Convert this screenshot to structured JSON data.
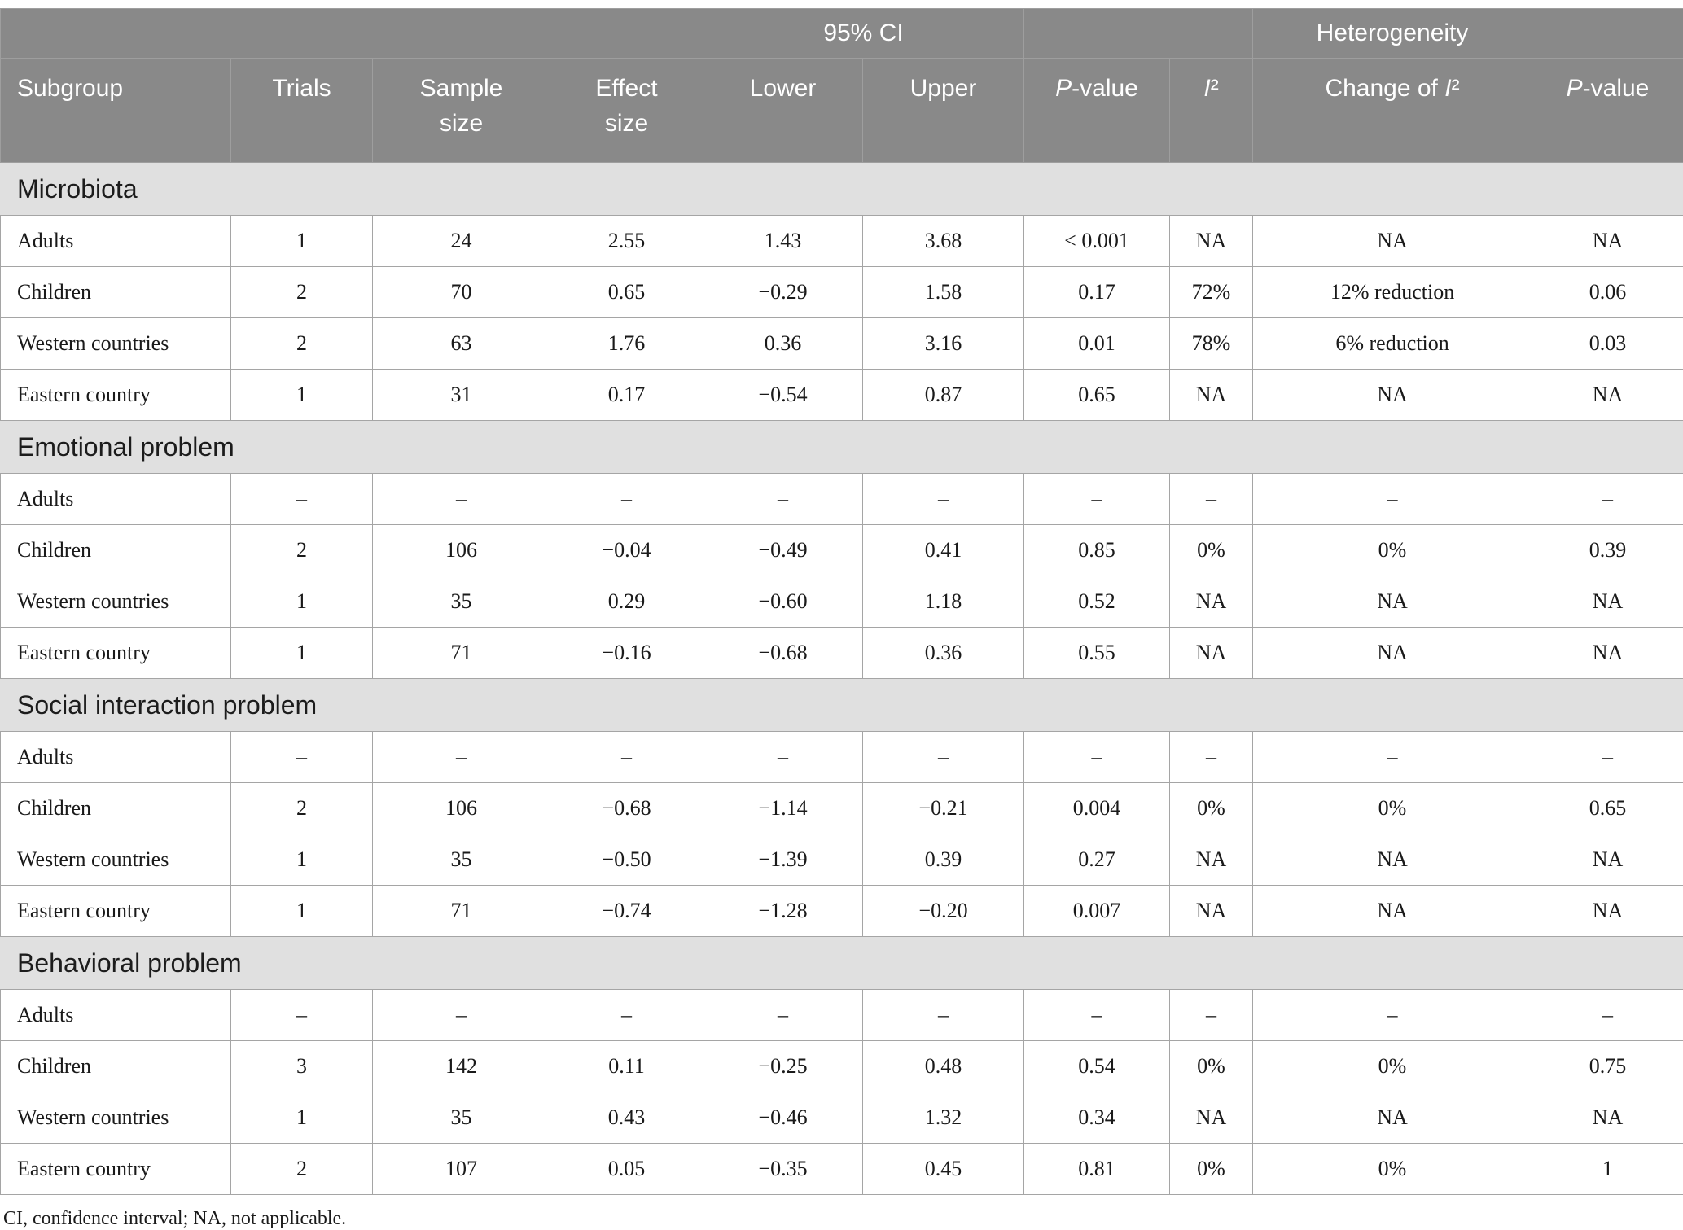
{
  "theme": {
    "header_bg": "#898989",
    "header_text": "#ffffff",
    "section_band_bg": "#e0e0e0",
    "body_bg": "#ffffff",
    "border_color": "#a5a5a5",
    "text_color": "#1a1a1a"
  },
  "table": {
    "group_headers": [
      {
        "label": "",
        "span": 4
      },
      {
        "label": "95% CI",
        "span": 2
      },
      {
        "label": "",
        "span": 2
      },
      {
        "label": "Heterogeneity",
        "span": 1
      },
      {
        "label": "",
        "span": 1
      }
    ],
    "columns": [
      "Subgroup",
      "Trials",
      "Sample\nsize",
      "Effect\nsize",
      "Lower",
      "Upper",
      "P-value",
      "I²",
      "Change of I²",
      "P-value"
    ],
    "sections": [
      {
        "title": "Microbiota",
        "rows": [
          {
            "subgroup": "Adults",
            "values": [
              "1",
              "24",
              "2.55",
              "1.43",
              "3.68",
              "< 0.001",
              "NA",
              "NA",
              "NA"
            ]
          },
          {
            "subgroup": "Children",
            "values": [
              "2",
              "70",
              "0.65",
              "−0.29",
              "1.58",
              "0.17",
              "72%",
              "12% reduction",
              "0.06"
            ]
          },
          {
            "subgroup": "Western countries",
            "values": [
              "2",
              "63",
              "1.76",
              "0.36",
              "3.16",
              "0.01",
              "78%",
              "6% reduction",
              "0.03"
            ]
          },
          {
            "subgroup": "Eastern country",
            "values": [
              "1",
              "31",
              "0.17",
              "−0.54",
              "0.87",
              "0.65",
              "NA",
              "NA",
              "NA"
            ]
          }
        ]
      },
      {
        "title": "Emotional problem",
        "rows": [
          {
            "subgroup": "Adults",
            "values": [
              "–",
              "–",
              "–",
              "–",
              "–",
              "–",
              "–",
              "–",
              "–"
            ]
          },
          {
            "subgroup": "Children",
            "values": [
              "2",
              "106",
              "−0.04",
              "−0.49",
              "0.41",
              "0.85",
              "0%",
              "0%",
              "0.39"
            ]
          },
          {
            "subgroup": "Western countries",
            "values": [
              "1",
              "35",
              "0.29",
              "−0.60",
              "1.18",
              "0.52",
              "NA",
              "NA",
              "NA"
            ]
          },
          {
            "subgroup": "Eastern country",
            "values": [
              "1",
              "71",
              "−0.16",
              "−0.68",
              "0.36",
              "0.55",
              "NA",
              "NA",
              "NA"
            ]
          }
        ]
      },
      {
        "title": "Social interaction problem",
        "rows": [
          {
            "subgroup": "Adults",
            "values": [
              "–",
              "–",
              "–",
              "–",
              "–",
              "–",
              "–",
              "–",
              "–"
            ]
          },
          {
            "subgroup": "Children",
            "values": [
              "2",
              "106",
              "−0.68",
              "−1.14",
              "−0.21",
              "0.004",
              "0%",
              "0%",
              "0.65"
            ]
          },
          {
            "subgroup": "Western countries",
            "values": [
              "1",
              "35",
              "−0.50",
              "−1.39",
              "0.39",
              "0.27",
              "NA",
              "NA",
              "NA"
            ]
          },
          {
            "subgroup": "Eastern country",
            "values": [
              "1",
              "71",
              "−0.74",
              "−1.28",
              "−0.20",
              "0.007",
              "NA",
              "NA",
              "NA"
            ]
          }
        ]
      },
      {
        "title": "Behavioral problem",
        "rows": [
          {
            "subgroup": "Adults",
            "values": [
              "–",
              "–",
              "–",
              "–",
              "–",
              "–",
              "–",
              "–",
              "–"
            ]
          },
          {
            "subgroup": "Children",
            "values": [
              "3",
              "142",
              "0.11",
              "−0.25",
              "0.48",
              "0.54",
              "0%",
              "0%",
              "0.75"
            ]
          },
          {
            "subgroup": "Western countries",
            "values": [
              "1",
              "35",
              "0.43",
              "−0.46",
              "1.32",
              "0.34",
              "NA",
              "NA",
              "NA"
            ]
          },
          {
            "subgroup": "Eastern country",
            "values": [
              "2",
              "107",
              "0.05",
              "−0.35",
              "0.45",
              "0.81",
              "0%",
              "0%",
              "1"
            ]
          }
        ]
      }
    ],
    "footnote": "CI, confidence interval; NA, not applicable."
  }
}
